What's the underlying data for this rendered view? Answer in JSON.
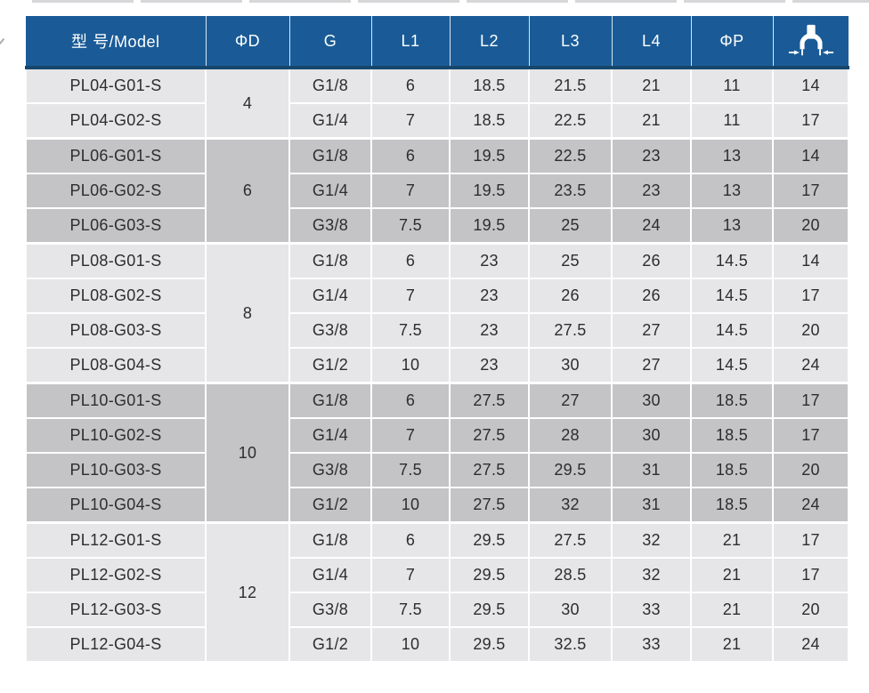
{
  "page": {
    "background": "#ffffff"
  },
  "table": {
    "header": {
      "model_label": "型 号/Model",
      "columns": [
        "ΦD",
        "G",
        "L1",
        "L2",
        "L3",
        "L4",
        "ΦP"
      ],
      "wrench_icon": "wrench-width-across-flats-icon",
      "bg_color": "#1a5b97",
      "text_color": "#ffffff",
      "bottom_line_color": "#15466d"
    },
    "colors": {
      "light_row": "#e6e5e7",
      "dark_row": "#c4c3c5",
      "separator": "#ffffff",
      "text": "#2d2d2f"
    },
    "groups": [
      {
        "phi_d": "4",
        "shade": "light",
        "rows": [
          {
            "model": "PL04-G01-S",
            "g": "G1/8",
            "l1": "6",
            "l2": "18.5",
            "l3": "21.5",
            "l4": "21",
            "phi_p": "11",
            "wrench_size": "14"
          },
          {
            "model": "PL04-G02-S",
            "g": "G1/4",
            "l1": "7",
            "l2": "18.5",
            "l3": "22.5",
            "l4": "21",
            "phi_p": "11",
            "wrench_size": "17"
          }
        ]
      },
      {
        "phi_d": "6",
        "shade": "dark",
        "rows": [
          {
            "model": "PL06-G01-S",
            "g": "G1/8",
            "l1": "6",
            "l2": "19.5",
            "l3": "22.5",
            "l4": "23",
            "phi_p": "13",
            "wrench_size": "14"
          },
          {
            "model": "PL06-G02-S",
            "g": "G1/4",
            "l1": "7",
            "l2": "19.5",
            "l3": "23.5",
            "l4": "23",
            "phi_p": "13",
            "wrench_size": "17"
          },
          {
            "model": "PL06-G03-S",
            "g": "G3/8",
            "l1": "7.5",
            "l2": "19.5",
            "l3": "25",
            "l4": "24",
            "phi_p": "13",
            "wrench_size": "20"
          }
        ]
      },
      {
        "phi_d": "8",
        "shade": "light",
        "rows": [
          {
            "model": "PL08-G01-S",
            "g": "G1/8",
            "l1": "6",
            "l2": "23",
            "l3": "25",
            "l4": "26",
            "phi_p": "14.5",
            "wrench_size": "14"
          },
          {
            "model": "PL08-G02-S",
            "g": "G1/4",
            "l1": "7",
            "l2": "23",
            "l3": "26",
            "l4": "26",
            "phi_p": "14.5",
            "wrench_size": "17"
          },
          {
            "model": "PL08-G03-S",
            "g": "G3/8",
            "l1": "7.5",
            "l2": "23",
            "l3": "27.5",
            "l4": "27",
            "phi_p": "14.5",
            "wrench_size": "20"
          },
          {
            "model": "PL08-G04-S",
            "g": "G1/2",
            "l1": "10",
            "l2": "23",
            "l3": "30",
            "l4": "27",
            "phi_p": "14.5",
            "wrench_size": "24"
          }
        ]
      },
      {
        "phi_d": "10",
        "shade": "dark",
        "rows": [
          {
            "model": "PL10-G01-S",
            "g": "G1/8",
            "l1": "6",
            "l2": "27.5",
            "l3": "27",
            "l4": "30",
            "phi_p": "18.5",
            "wrench_size": "17"
          },
          {
            "model": "PL10-G02-S",
            "g": "G1/4",
            "l1": "7",
            "l2": "27.5",
            "l3": "28",
            "l4": "30",
            "phi_p": "18.5",
            "wrench_size": "17"
          },
          {
            "model": "PL10-G03-S",
            "g": "G3/8",
            "l1": "7.5",
            "l2": "27.5",
            "l3": "29.5",
            "l4": "31",
            "phi_p": "18.5",
            "wrench_size": "20"
          },
          {
            "model": "PL10-G04-S",
            "g": "G1/2",
            "l1": "10",
            "l2": "27.5",
            "l3": "32",
            "l4": "31",
            "phi_p": "18.5",
            "wrench_size": "24"
          }
        ]
      },
      {
        "phi_d": "12",
        "shade": "light",
        "rows": [
          {
            "model": "PL12-G01-S",
            "g": "G1/8",
            "l1": "6",
            "l2": "29.5",
            "l3": "27.5",
            "l4": "32",
            "phi_p": "21",
            "wrench_size": "17"
          },
          {
            "model": "PL12-G02-S",
            "g": "G1/4",
            "l1": "7",
            "l2": "29.5",
            "l3": "28.5",
            "l4": "32",
            "phi_p": "21",
            "wrench_size": "17"
          },
          {
            "model": "PL12-G03-S",
            "g": "G3/8",
            "l1": "7.5",
            "l2": "29.5",
            "l3": "30",
            "l4": "33",
            "phi_p": "21",
            "wrench_size": "20"
          },
          {
            "model": "PL12-G04-S",
            "g": "G1/2",
            "l1": "10",
            "l2": "29.5",
            "l3": "32.5",
            "l4": "33",
            "phi_p": "21",
            "wrench_size": "24"
          }
        ]
      }
    ]
  }
}
